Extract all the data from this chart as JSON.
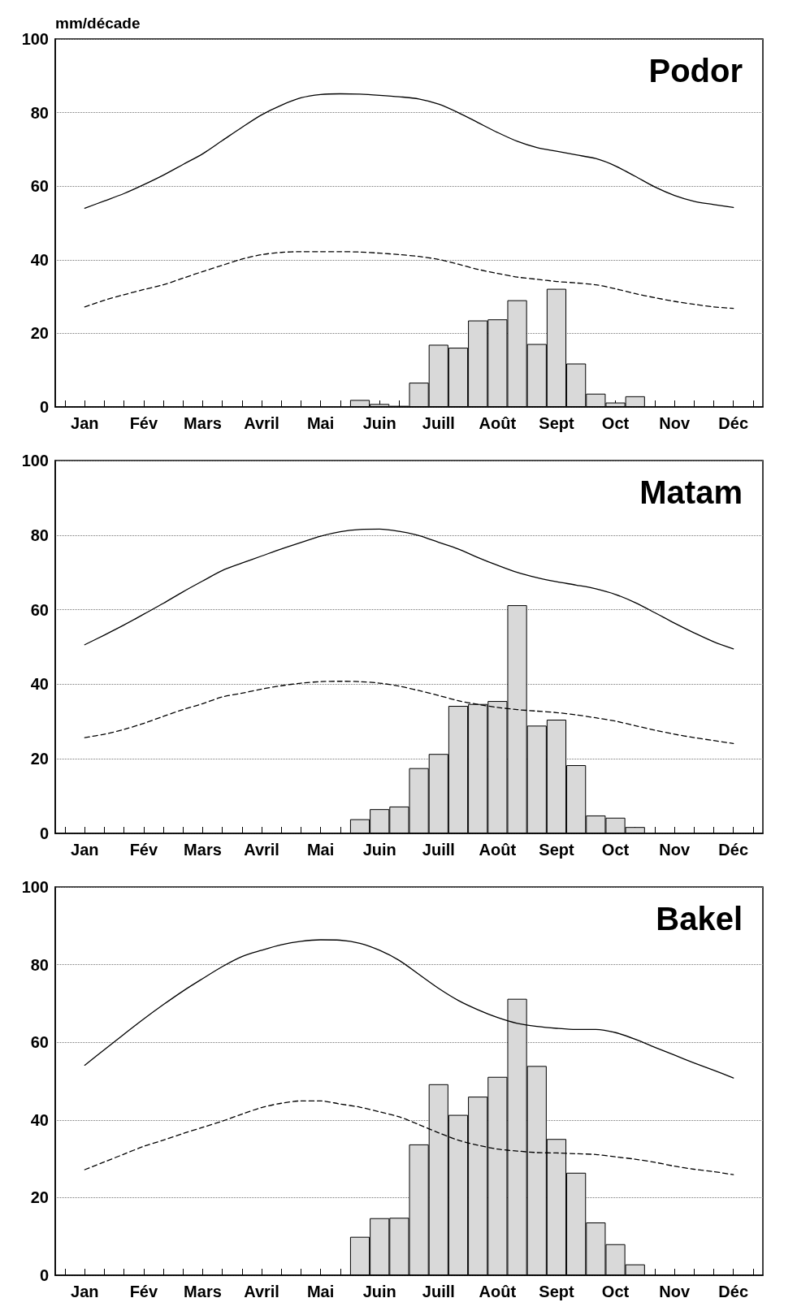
{
  "chart_data": [
    {
      "type": "bar",
      "title": "Podor",
      "ylabel": "mm/décade",
      "categories": [
        null,
        "Jan",
        null,
        null,
        "Fév",
        null,
        null,
        "Mars",
        null,
        null,
        "Avril",
        null,
        null,
        "Mai",
        null,
        null,
        "Juin",
        null,
        null,
        "Juill",
        null,
        null,
        "Août",
        null,
        null,
        "Sept",
        null,
        null,
        "Oct",
        null,
        null,
        "Nov",
        null,
        null,
        "Déc",
        null
      ],
      "series": [
        {
          "color": "#d9d9d9",
          "values": [
            null,
            null,
            null,
            null,
            null,
            null,
            null,
            null,
            null,
            null,
            null,
            null,
            null,
            null,
            null,
            1.9,
            0.8,
            0.3,
            6.6,
            16.9,
            16.1,
            23.5,
            23.8,
            29,
            17.1,
            32.1,
            11.8,
            3.6,
            1.2,
            2.9,
            null,
            null,
            null,
            null,
            null,
            null
          ]
        },
        {
          "type": "line",
          "color": "#000000",
          "line_style": "solid",
          "values": [
            null,
            54,
            56,
            58,
            60.4,
            63,
            65.9,
            68.8,
            72.4,
            76,
            79.4,
            82,
            84,
            84.9,
            85.1,
            85,
            84.7,
            84.3,
            83.7,
            82.3,
            80,
            77.3,
            74.6,
            72.2,
            70.5,
            69.5,
            68.5,
            67.5,
            65.5,
            62.7,
            59.8,
            57.5,
            55.9,
            55,
            54.2,
            null
          ]
        },
        {
          "type": "line",
          "color": "#000000",
          "line_style": "dashed",
          "values": [
            null,
            27.2,
            29,
            30.5,
            31.9,
            33.2,
            35,
            36.8,
            38.5,
            40.2,
            41.4,
            42,
            42.2,
            42.2,
            42.2,
            42.1,
            41.8,
            41.4,
            40.9,
            40.1,
            38.8,
            37.4,
            36.3,
            35.3,
            34.7,
            34.1,
            33.7,
            33.2,
            32.1,
            30.8,
            29.7,
            28.7,
            27.9,
            27.2,
            26.8,
            null
          ]
        }
      ],
      "ylim": [
        0,
        100
      ],
      "yticks": [
        0,
        20,
        40,
        60,
        80,
        100
      ],
      "grid": "y",
      "marker": "none"
    },
    {
      "type": "bar",
      "title": "Matam",
      "categories": [
        null,
        "Jan",
        null,
        null,
        "Fév",
        null,
        null,
        "Mars",
        null,
        null,
        "Avril",
        null,
        null,
        "Mai",
        null,
        null,
        "Juin",
        null,
        null,
        "Juill",
        null,
        null,
        "Août",
        null,
        null,
        "Sept",
        null,
        null,
        "Oct",
        null,
        null,
        "Nov",
        null,
        null,
        "Déc",
        null
      ],
      "series": [
        {
          "color": "#d9d9d9",
          "values": [
            null,
            null,
            null,
            null,
            null,
            null,
            null,
            null,
            null,
            null,
            null,
            null,
            null,
            null,
            null,
            3.8,
            6.5,
            7.2,
            17.5,
            21.3,
            34.2,
            34.7,
            35.5,
            61.2,
            28.9,
            30.5,
            18.3,
            4.8,
            4.2,
            1.7,
            null,
            null,
            null,
            null,
            null,
            null
          ]
        },
        {
          "type": "line",
          "color": "#000000",
          "line_style": "solid",
          "values": [
            null,
            50.6,
            53.2,
            55.9,
            58.8,
            61.7,
            64.8,
            67.7,
            70.5,
            72.5,
            74.4,
            76.3,
            78,
            79.7,
            80.9,
            81.5,
            81.6,
            81,
            79.9,
            78.1,
            76.3,
            74,
            71.9,
            70,
            68.6,
            67.5,
            66.6,
            65.6,
            64.1,
            61.9,
            59.2,
            56.4,
            53.8,
            51.4,
            49.5,
            null
          ]
        },
        {
          "type": "line",
          "color": "#000000",
          "line_style": "dashed",
          "values": [
            null,
            25.7,
            26.6,
            27.9,
            29.5,
            31.4,
            33.2,
            34.8,
            36.6,
            37.6,
            38.7,
            39.6,
            40.3,
            40.7,
            40.8,
            40.7,
            40.3,
            39.5,
            38.3,
            37,
            35.6,
            34.6,
            33.8,
            33.2,
            32.8,
            32.4,
            31.8,
            31,
            30.1,
            28.9,
            27.7,
            26.6,
            25.7,
            24.9,
            24.1,
            null
          ]
        }
      ],
      "ylim": [
        0,
        100
      ],
      "yticks": [
        0,
        20,
        40,
        60,
        80,
        100
      ],
      "grid": "y",
      "marker": "none"
    },
    {
      "type": "bar",
      "title": "Bakel",
      "categories": [
        null,
        "Jan",
        null,
        null,
        "Fév",
        null,
        null,
        "Mars",
        null,
        null,
        "Avril",
        null,
        null,
        "Mai",
        null,
        null,
        "Juin",
        null,
        null,
        "Juill",
        null,
        null,
        "Août",
        null,
        null,
        "Sept",
        null,
        null,
        "Oct",
        null,
        null,
        "Nov",
        null,
        null,
        "Déc",
        null
      ],
      "series": [
        {
          "color": "#d9d9d9",
          "values": [
            null,
            null,
            null,
            null,
            null,
            null,
            null,
            null,
            null,
            null,
            null,
            null,
            null,
            null,
            null,
            9.9,
            14.7,
            14.8,
            33.7,
            49.2,
            41.3,
            46,
            51.1,
            71.2,
            53.9,
            35.1,
            26.4,
            13.6,
            8,
            2.8,
            null,
            null,
            null,
            null,
            null,
            null
          ]
        },
        {
          "type": "line",
          "color": "#000000",
          "line_style": "solid",
          "values": [
            null,
            54.1,
            58.1,
            62.1,
            66,
            69.7,
            73.2,
            76.4,
            79.5,
            82.1,
            83.7,
            85.1,
            86,
            86.4,
            86.3,
            85.5,
            83.7,
            81.1,
            77.5,
            73.9,
            70.8,
            68.4,
            66.4,
            64.9,
            64.1,
            63.6,
            63.3,
            63.3,
            62.5,
            60.8,
            58.7,
            56.7,
            54.7,
            52.8,
            50.8,
            null
          ]
        },
        {
          "type": "line",
          "color": "#000000",
          "line_style": "dashed",
          "values": [
            null,
            27.2,
            29.2,
            31.2,
            33.2,
            34.8,
            36.5,
            38.1,
            39.7,
            41.5,
            43.2,
            44.3,
            44.9,
            44.9,
            44.1,
            43.3,
            42.1,
            40.8,
            38.8,
            36.7,
            34.8,
            33.5,
            32.5,
            32,
            31.6,
            31.5,
            31.3,
            31.1,
            30.5,
            29.9,
            29.1,
            28.1,
            27.3,
            26.7,
            25.9,
            null
          ]
        }
      ],
      "ylim": [
        0,
        100
      ],
      "yticks": [
        0,
        20,
        40,
        60,
        80,
        100
      ],
      "grid": "y",
      "marker": "none"
    }
  ]
}
